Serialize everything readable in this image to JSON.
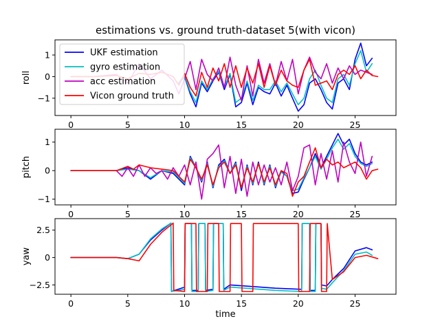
{
  "title": "estimations vs. ground truth-dataset 5(with vicon)",
  "colors": {
    "ukf": "#0000ff",
    "gyro": "#00bfbf",
    "acc": "#bf00bf",
    "vicon": "#ff0000"
  },
  "legend": {
    "placement": "top-left of first panel",
    "entries": [
      {
        "label": "UKF estimation",
        "color": "#0000ff"
      },
      {
        "label": "gyro estimation",
        "color": "#00bfbf"
      },
      {
        "label": "acc estimation",
        "color": "#bf00bf"
      },
      {
        "label": "Vicon ground truth",
        "color": "#ff0000"
      }
    ]
  },
  "chart_data": [
    {
      "type": "line",
      "ylabel": "roll",
      "xlabel": "",
      "xlim": [
        -1.4,
        28.6
      ],
      "ylim": [
        -1.8,
        1.7
      ],
      "xticks": [
        0,
        5,
        10,
        15,
        20,
        25
      ],
      "yticks": [
        -1,
        0,
        1
      ],
      "series": [
        {
          "name": "UKF estimation",
          "color": "#0000ff",
          "x": [
            9.5,
            10,
            10.5,
            11,
            11.5,
            12,
            12.5,
            13,
            13.5,
            14,
            14.5,
            15,
            15.5,
            16,
            16.5,
            17,
            17.5,
            18,
            18.5,
            19,
            19.5,
            20,
            20.5,
            21,
            21.5,
            22,
            22.5,
            23,
            23.5,
            24,
            24.5,
            25,
            25.5,
            26,
            26.5
          ],
          "y": [
            -0.3,
            0.0,
            -0.8,
            -1.4,
            -0.3,
            -0.7,
            -0.2,
            0.2,
            -0.6,
            0.1,
            -1.4,
            -1.2,
            -0.3,
            -1.3,
            -0.5,
            -0.7,
            -0.8,
            -0.3,
            -0.9,
            -0.4,
            -1.0,
            -1.6,
            -1.3,
            -0.3,
            -0.1,
            -0.6,
            -1.2,
            -1.5,
            -0.3,
            -0.1,
            -0.6,
            0.8,
            1.55,
            0.5,
            0.85
          ]
        },
        {
          "name": "gyro estimation",
          "color": "#00bfbf",
          "x": [
            9.5,
            10,
            10.5,
            11,
            11.5,
            12,
            12.5,
            13,
            13.5,
            14,
            14.5,
            15,
            15.5,
            16,
            16.5,
            17,
            17.5,
            18,
            18.5,
            19,
            19.5,
            20,
            20.5,
            21,
            21.5,
            22,
            22.5,
            23,
            23.5,
            24,
            24.5,
            25,
            25.5,
            26,
            26.5
          ],
          "y": [
            -0.25,
            0.05,
            -0.7,
            -1.2,
            -0.2,
            -0.6,
            -0.1,
            0.25,
            -0.5,
            0.15,
            -1.2,
            -1.0,
            -0.2,
            -1.1,
            -0.4,
            -0.6,
            -0.6,
            -0.2,
            -0.7,
            -0.3,
            -0.8,
            -1.3,
            -1.0,
            -0.1,
            0.3,
            -0.4,
            -1.0,
            -1.2,
            -0.1,
            0.1,
            -0.4,
            0.6,
            1.2,
            0.2,
            0.6
          ]
        },
        {
          "name": "acc estimation",
          "color": "#bf00bf",
          "x": [
            0,
            2,
            4,
            5,
            6,
            7,
            8,
            9,
            9.5,
            10,
            10.5,
            11,
            11.5,
            12,
            12.5,
            13,
            13.5,
            14,
            14.5,
            15,
            15.5,
            16,
            16.5,
            17,
            17.5,
            18,
            18.5,
            19,
            19.5,
            20,
            20.5,
            21,
            21.5,
            22,
            22.5,
            23,
            23.5,
            24,
            24.5,
            25,
            25.5,
            26,
            26.5
          ],
          "y": [
            0.0,
            0.0,
            0.1,
            -0.3,
            0.6,
            -0.1,
            0.3,
            -0.2,
            -0.8,
            -0.1,
            0.7,
            -0.6,
            0.8,
            0.1,
            -0.2,
            0.4,
            -0.5,
            0.9,
            -0.4,
            -1.1,
            0.5,
            -0.9,
            0.8,
            -0.3,
            0.6,
            -0.4,
            0.7,
            -0.2,
            0.8,
            -0.8,
            0.3,
            0.9,
            0.2,
            -0.1,
            0.6,
            -0.3,
            0.4,
            -0.1,
            0.5,
            0.1,
            0.3,
            0.2,
            0.1
          ]
        },
        {
          "name": "Vicon ground truth",
          "color": "#ff0000",
          "x": [
            0,
            2,
            4,
            5,
            6,
            7,
            8,
            9,
            9.5,
            10,
            10.5,
            11,
            11.5,
            12,
            12.5,
            13,
            13.5,
            14,
            14.5,
            15,
            15.5,
            16,
            16.5,
            17,
            17.5,
            18,
            18.5,
            19,
            19.5,
            20,
            20.5,
            21,
            21.5,
            22,
            22.5,
            23,
            23.5,
            24,
            24.5,
            25,
            25.5,
            26,
            26.5,
            27
          ],
          "y": [
            0.0,
            0.0,
            0.05,
            -0.1,
            0.15,
            0.1,
            0.2,
            0.0,
            -0.4,
            0.15,
            -0.5,
            -0.9,
            0.2,
            -0.5,
            0.4,
            -0.2,
            0.6,
            -0.5,
            0.5,
            -0.5,
            0.4,
            -0.3,
            0.6,
            -0.5,
            0.5,
            -0.4,
            0.3,
            -0.2,
            -0.4,
            -0.5,
            0.3,
            0.8,
            -0.4,
            -0.3,
            -0.2,
            -0.6,
            0.1,
            0.3,
            0.1,
            0.5,
            -0.1,
            0.3,
            0.05,
            0.0
          ]
        }
      ]
    },
    {
      "type": "line",
      "ylabel": "pitch",
      "xlabel": "",
      "xlim": [
        -1.4,
        28.6
      ],
      "ylim": [
        -1.2,
        1.45
      ],
      "xticks": [
        0,
        5,
        10,
        15,
        20,
        25
      ],
      "yticks": [
        -1,
        0,
        1
      ],
      "series": [
        {
          "name": "UKF estimation",
          "color": "#0000ff",
          "x": [
            0,
            4,
            5,
            6,
            7,
            8,
            9,
            10,
            10.5,
            11,
            11.5,
            12,
            12.5,
            13,
            13.5,
            14,
            14.5,
            15,
            15.5,
            16,
            16.5,
            17,
            17.5,
            18,
            18.5,
            19,
            19.5,
            20,
            20.5,
            21,
            21.5,
            22,
            22.5,
            23,
            23.5,
            24,
            24.5,
            25,
            25.5,
            26,
            26.5
          ],
          "y": [
            0.0,
            0.0,
            0.1,
            0.0,
            -0.3,
            0.0,
            -0.1,
            -0.5,
            0.5,
            0.1,
            -0.4,
            0.3,
            -0.6,
            0.2,
            0.4,
            -0.1,
            0.3,
            -0.7,
            0.2,
            -0.5,
            0.3,
            -0.5,
            0.2,
            -0.6,
            0.0,
            -0.2,
            -0.8,
            -0.75,
            -0.3,
            0.1,
            0.6,
            0.1,
            0.5,
            0.9,
            1.3,
            0.9,
            1.1,
            0.6,
            0.3,
            0.2,
            0.3
          ]
        },
        {
          "name": "gyro estimation",
          "color": "#00bfbf",
          "x": [
            0,
            4,
            5,
            6,
            7,
            8,
            9,
            10,
            10.5,
            11,
            11.5,
            12,
            12.5,
            13,
            13.5,
            14,
            14.5,
            15,
            15.5,
            16,
            16.5,
            17,
            17.5,
            18,
            18.5,
            19,
            19.5,
            20,
            20.5,
            21,
            21.5,
            22,
            22.5,
            23,
            23.5,
            24,
            24.5,
            25,
            25.5,
            26,
            26.5
          ],
          "y": [
            0.0,
            0.0,
            0.05,
            0.0,
            -0.25,
            0.0,
            -0.05,
            -0.45,
            0.45,
            0.1,
            -0.35,
            0.25,
            -0.55,
            0.15,
            0.35,
            -0.1,
            0.25,
            -0.6,
            0.15,
            -0.45,
            0.25,
            -0.45,
            0.15,
            -0.55,
            -0.05,
            -0.2,
            -0.7,
            -0.65,
            -0.25,
            0.1,
            0.5,
            0.05,
            0.4,
            0.8,
            1.1,
            0.75,
            0.95,
            0.5,
            0.25,
            0.15,
            0.25
          ]
        },
        {
          "name": "acc estimation",
          "color": "#bf00bf",
          "x": [
            4,
            4.5,
            5,
            5.5,
            6,
            6.5,
            7,
            7.5,
            8,
            8.5,
            9,
            9.5,
            10,
            10.5,
            11,
            11.5,
            12,
            12.5,
            13,
            13.5,
            14,
            14.5,
            15,
            15.5,
            16,
            16.5,
            17,
            17.5,
            18,
            18.5,
            19,
            19.5,
            20,
            20.5,
            21,
            21.5,
            22,
            22.5,
            23,
            23.5,
            24,
            24.5,
            25,
            25.5,
            26,
            26.5
          ],
          "y": [
            0.0,
            -0.2,
            0.1,
            -0.2,
            0.2,
            -0.2,
            0.1,
            -0.1,
            0.0,
            -0.3,
            0.1,
            -0.2,
            0.2,
            -0.5,
            0.3,
            -1.0,
            0.4,
            0.6,
            0.9,
            -0.6,
            0.5,
            -0.8,
            0.4,
            -0.9,
            0.3,
            -0.5,
            0.2,
            -0.4,
            0.1,
            -0.5,
            0.3,
            -0.7,
            -0.2,
            0.8,
            0.9,
            -0.5,
            0.6,
            -0.3,
            0.7,
            -0.4,
            1.0,
            0.3,
            -0.1,
            1.0,
            -0.2,
            0.5
          ]
        },
        {
          "name": "Vicon ground truth",
          "color": "#ff0000",
          "x": [
            0,
            4,
            5,
            5.5,
            6,
            7,
            8,
            9,
            10,
            10.5,
            11,
            11.5,
            12,
            12.5,
            13,
            13.5,
            14,
            14.5,
            15,
            15.5,
            16,
            16.5,
            17,
            17.5,
            18,
            18.5,
            19,
            19.5,
            20,
            20.5,
            21,
            21.5,
            22,
            22.5,
            23,
            23.5,
            24,
            24.5,
            25,
            25.5,
            26,
            26.5,
            27
          ],
          "y": [
            0.0,
            0.0,
            0.15,
            0.05,
            0.2,
            0.1,
            0.05,
            0.0,
            -0.4,
            0.4,
            0.1,
            -0.3,
            0.2,
            -0.5,
            0.1,
            0.3,
            -0.1,
            0.2,
            -0.6,
            0.1,
            -0.4,
            0.25,
            -0.4,
            0.1,
            -0.5,
            0.0,
            -0.1,
            -0.9,
            -0.4,
            -0.2,
            0.3,
            0.8,
            0.1,
            0.4,
            0.2,
            0.3,
            0.1,
            0.2,
            0.3,
            0.1,
            -0.3,
            0.0,
            0.05
          ]
        }
      ]
    },
    {
      "type": "line",
      "ylabel": "yaw",
      "xlabel": "time",
      "xlim": [
        -1.4,
        28.6
      ],
      "ylim": [
        -3.35,
        3.55
      ],
      "xticks": [
        0,
        5,
        10,
        15,
        20,
        25
      ],
      "yticks": [
        -2.5,
        0.0,
        2.5
      ],
      "series": [
        {
          "name": "UKF estimation",
          "color": "#0000ff",
          "x": [
            0,
            4,
            5,
            6,
            7,
            8,
            8.8,
            8.85,
            10,
            10.05,
            10.6,
            10.65,
            11.2,
            11.25,
            11.8,
            11.85,
            12.5,
            12.55,
            13.4,
            13.45,
            14,
            18,
            20.3,
            20.35,
            21,
            21.05,
            21.5,
            21.55,
            22,
            22.05,
            22.5,
            23,
            24,
            25,
            26,
            26.5
          ],
          "y": [
            0.0,
            0.0,
            -0.1,
            0.3,
            1.6,
            2.5,
            3.14,
            -3.1,
            -2.7,
            3.1,
            3.1,
            -3.0,
            -3.0,
            3.1,
            3.1,
            -3.0,
            -2.9,
            3.1,
            3.1,
            -2.9,
            -2.5,
            -2.8,
            -2.9,
            3.1,
            3.1,
            -3.0,
            -3.0,
            3.1,
            3.1,
            -2.5,
            -2.6,
            -2.0,
            -1.0,
            0.6,
            0.9,
            0.7
          ]
        },
        {
          "name": "gyro estimation",
          "color": "#00bfbf",
          "x": [
            0,
            4,
            5,
            6,
            7,
            8,
            8.8,
            8.85,
            10,
            10.05,
            10.6,
            10.65,
            11.2,
            11.25,
            11.8,
            11.85,
            12.5,
            12.55,
            13.4,
            13.45,
            14,
            18,
            20.3,
            20.35,
            21,
            21.05,
            21.5,
            21.55,
            22,
            22.05,
            22.5,
            23,
            24,
            25,
            26,
            26.5
          ],
          "y": [
            0.0,
            0.0,
            -0.1,
            0.3,
            1.7,
            2.6,
            3.14,
            -3.1,
            -2.9,
            3.1,
            3.1,
            -3.1,
            -3.1,
            3.1,
            3.1,
            -3.1,
            -3.0,
            3.1,
            3.1,
            -3.0,
            -2.7,
            -3.0,
            -3.1,
            3.1,
            3.1,
            -3.1,
            -3.1,
            3.1,
            3.1,
            -2.8,
            -2.9,
            -2.3,
            -1.2,
            0.3,
            0.5,
            0.2
          ]
        },
        {
          "name": "Vicon ground truth",
          "color": "#ff0000",
          "x": [
            0,
            4,
            5,
            6,
            7,
            8,
            9,
            9.05,
            10,
            10.05,
            11,
            11.05,
            12,
            12.05,
            13,
            13.05,
            14,
            14.05,
            15,
            15.05,
            16,
            16.05,
            20,
            20.05,
            21,
            21.05,
            22,
            22.05,
            22.5,
            22.55,
            23,
            24,
            25,
            26,
            27
          ],
          "y": [
            0.0,
            0.0,
            -0.1,
            -0.3,
            1.2,
            2.3,
            3.14,
            -3.0,
            -3.1,
            3.1,
            3.1,
            -3.1,
            -3.1,
            3.1,
            3.1,
            -3.1,
            -3.1,
            3.1,
            3.1,
            -3.1,
            -3.1,
            3.1,
            3.1,
            -3.1,
            -3.1,
            3.1,
            3.1,
            -3.1,
            -3.1,
            3.1,
            -2.0,
            -1.3,
            0.0,
            0.2,
            -0.1
          ]
        }
      ]
    }
  ]
}
